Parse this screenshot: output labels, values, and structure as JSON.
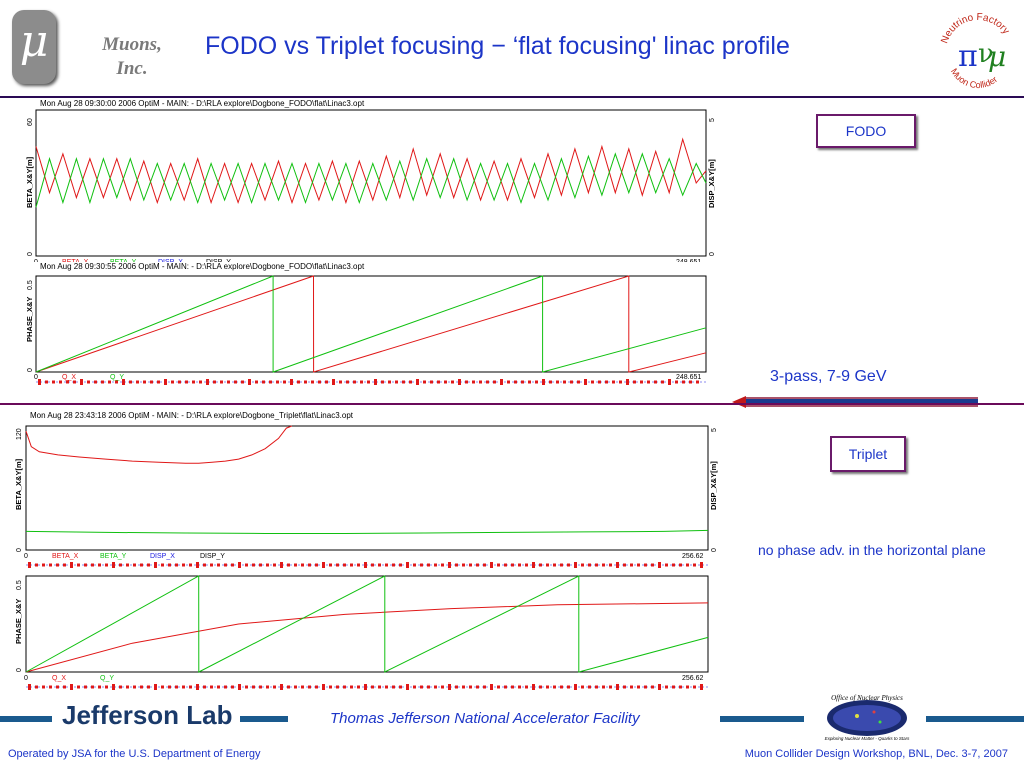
{
  "header": {
    "logo_symbol": "μ",
    "org_line1": "Muons,",
    "org_line2": "Inc.",
    "title": "FODO vs Triplet focusing − ‘flat focusing' linac profile",
    "nf_logo_top": "Neutrino Factory",
    "nf_logo_bottom": "Muon Collider"
  },
  "labels": {
    "fodo": "FODO",
    "triplet": "Triplet",
    "pass_note": "3-pass, 7-9 GeV",
    "phase_note": "no phase adv. in the horizontal plane"
  },
  "footer": {
    "lab_name": "Jefferson Lab",
    "facility": "Thomas Jefferson National Accelerator Facility",
    "left": "Operated by JSA for the U.S. Department of Energy",
    "right": "Muon Collider Design Workshop, BNL, Dec. 3-7, 2007",
    "onp_logo_text": "Office of Nuclear Physics",
    "onp_logo_sub": "Exploring Nuclear Matter - Quarks to Stars"
  },
  "colors": {
    "title": "#1c35c8",
    "beta_x": "#e01818",
    "beta_y": "#10c010",
    "disp_x": "#1818e0",
    "disp_y": "#000000"
  },
  "chart_data": [
    {
      "type": "line",
      "header": "Mon Aug 28 09:30:00 2006    OptiM - MAIN: - D:\\RLA explore\\Dogbone_FODO\\flat\\Linac3.opt",
      "ylabel": "BETA_X&Y[m]",
      "ylabel_right": "DISP_X&Y[m]",
      "xlim": [
        0,
        248.651
      ],
      "ylim": [
        0,
        60
      ],
      "ylim_right": [
        0,
        5
      ],
      "x_tick_labels": [
        "0",
        "248.651"
      ],
      "y_tick_labels": [
        "0",
        "60"
      ],
      "y_tick_labels_right": [
        "0",
        "5"
      ],
      "legend": [
        "BETA_X",
        "BETA_Y",
        "DISP_X",
        "DISP_Y"
      ],
      "series": [
        {
          "name": "BETA_X",
          "x": [
            0,
            5,
            10,
            15,
            20,
            25,
            30,
            35,
            40,
            45,
            50,
            55,
            60,
            65,
            70,
            75,
            80,
            85,
            90,
            95,
            100,
            105,
            110,
            115,
            120,
            125,
            130,
            135,
            140,
            145,
            150,
            155,
            160,
            165,
            170,
            175,
            180,
            185,
            190,
            195,
            200,
            205,
            210,
            215,
            220,
            225,
            230,
            235,
            240,
            245,
            248.65
          ],
          "values": [
            45,
            26,
            42,
            24,
            40,
            24,
            40,
            23,
            39,
            22,
            38,
            23,
            40,
            22,
            38,
            22,
            38,
            23,
            39,
            22,
            38,
            23,
            39,
            22,
            39,
            23,
            41,
            24,
            44,
            25,
            42,
            24,
            40,
            23,
            39,
            23,
            40,
            24,
            42,
            25,
            44,
            26,
            45,
            26,
            44,
            25,
            43,
            26,
            48,
            30,
            35
          ]
        },
        {
          "name": "BETA_Y",
          "x": [
            0,
            5,
            10,
            15,
            20,
            25,
            30,
            35,
            40,
            45,
            50,
            55,
            60,
            65,
            70,
            75,
            80,
            85,
            90,
            95,
            100,
            105,
            110,
            115,
            120,
            125,
            130,
            135,
            140,
            145,
            150,
            155,
            160,
            165,
            170,
            175,
            180,
            185,
            190,
            195,
            200,
            205,
            210,
            215,
            220,
            225,
            230,
            235,
            240,
            245,
            248.65
          ],
          "values": [
            20,
            40,
            22,
            40,
            22,
            40,
            24,
            40,
            23,
            38,
            23,
            38,
            22,
            38,
            23,
            38,
            22,
            38,
            23,
            38,
            22,
            38,
            23,
            38,
            22,
            38,
            23,
            39,
            23,
            40,
            24,
            40,
            23,
            38,
            23,
            38,
            22,
            38,
            23,
            40,
            24,
            41,
            25,
            42,
            26,
            42,
            26,
            40,
            25,
            38,
            30
          ]
        }
      ]
    },
    {
      "type": "line",
      "header": "Mon Aug 28 09:30:55 2006    OptiM - MAIN: - D:\\RLA explore\\Dogbone_FODO\\flat\\Linac3.opt",
      "ylabel": "PHASE_X&Y",
      "xlim": [
        0,
        248.651
      ],
      "ylim": [
        0,
        0.5
      ],
      "x_tick_labels": [
        "0",
        "248.651"
      ],
      "y_tick_labels": [
        "0",
        "0.5"
      ],
      "legend": [
        "Q_X",
        "Q_Y"
      ],
      "series": [
        {
          "name": "Q_X",
          "x": [
            0,
            103,
            103.01,
            220,
            220.01,
            248.65
          ],
          "values": [
            0,
            0.5,
            0,
            0.5,
            0,
            0.1
          ]
        },
        {
          "name": "Q_Y",
          "x": [
            0,
            88,
            88.01,
            188,
            188.01,
            248.65
          ],
          "values": [
            0,
            0.52,
            0,
            0.52,
            0,
            0.23
          ]
        }
      ]
    },
    {
      "type": "line",
      "header": "Mon Aug 28 23:43:18 2006    OptiM - MAIN: - D:\\RLA explore\\Dogbone_Triplet\\flat\\Linac3.opt",
      "ylabel": "BETA_X&Y[m]",
      "ylabel_right": "DISP_X&Y[m]",
      "xlim": [
        0,
        256.62
      ],
      "ylim": [
        0,
        120
      ],
      "ylim_right": [
        0,
        5
      ],
      "x_tick_labels": [
        "0",
        "256.62"
      ],
      "y_tick_labels": [
        "0",
        "120"
      ],
      "y_tick_labels_right": [
        "0",
        "5"
      ],
      "legend": [
        "BETA_X",
        "BETA_Y",
        "DISP_X",
        "DISP_Y"
      ],
      "series": [
        {
          "name": "BETA_X",
          "x": [
            0,
            2,
            5,
            12,
            20,
            30,
            40,
            50,
            60,
            65,
            70,
            75,
            80,
            85,
            90,
            95,
            98,
            100
          ],
          "values": [
            115,
            100,
            95,
            92,
            90,
            88,
            86,
            85,
            84,
            84,
            85,
            86,
            88,
            92,
            98,
            108,
            118,
            120
          ]
        },
        {
          "name": "BETA_Y",
          "x": [
            0,
            30,
            60,
            90,
            120,
            150,
            180,
            210,
            240,
            256.62
          ],
          "values": [
            18,
            17,
            16.5,
            16,
            16,
            16.5,
            17,
            17.5,
            18,
            19
          ]
        }
      ]
    },
    {
      "type": "line",
      "header": "",
      "ylabel": "PHASE_X&Y",
      "xlim": [
        0,
        256.62
      ],
      "ylim": [
        0,
        0.5
      ],
      "x_tick_labels": [
        "0",
        "256.62"
      ],
      "y_tick_labels": [
        "0",
        "0.5"
      ],
      "legend": [
        "Q_X",
        "Q_Y"
      ],
      "series": [
        {
          "name": "Q_X",
          "x": [
            0,
            40,
            80,
            120,
            160,
            200,
            256.62
          ],
          "values": [
            0,
            0.15,
            0.25,
            0.3,
            0.33,
            0.35,
            0.36
          ]
        },
        {
          "name": "Q_Y",
          "x": [
            0,
            65,
            65.01,
            135,
            135.01,
            208,
            208.01,
            256.62
          ],
          "values": [
            0,
            0.5,
            0,
            0.5,
            0,
            0.5,
            0,
            0.18
          ]
        }
      ]
    }
  ]
}
